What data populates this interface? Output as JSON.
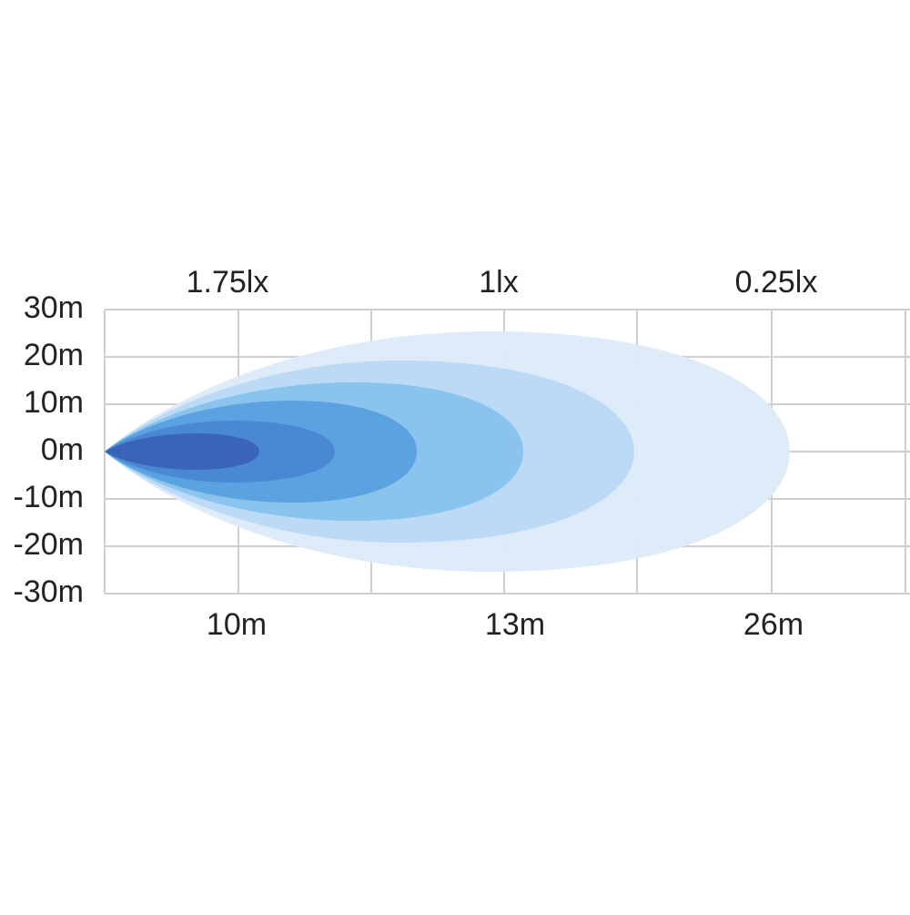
{
  "y_axis_labels": [
    "30m",
    "20m",
    "10m",
    "0m",
    "-10m",
    "-20m",
    "-30m"
  ],
  "top_labels": [
    "1.75lx",
    "1lx",
    "0.25lx"
  ],
  "bottom_labels": [
    "10m",
    "13m",
    "26m"
  ]
}
